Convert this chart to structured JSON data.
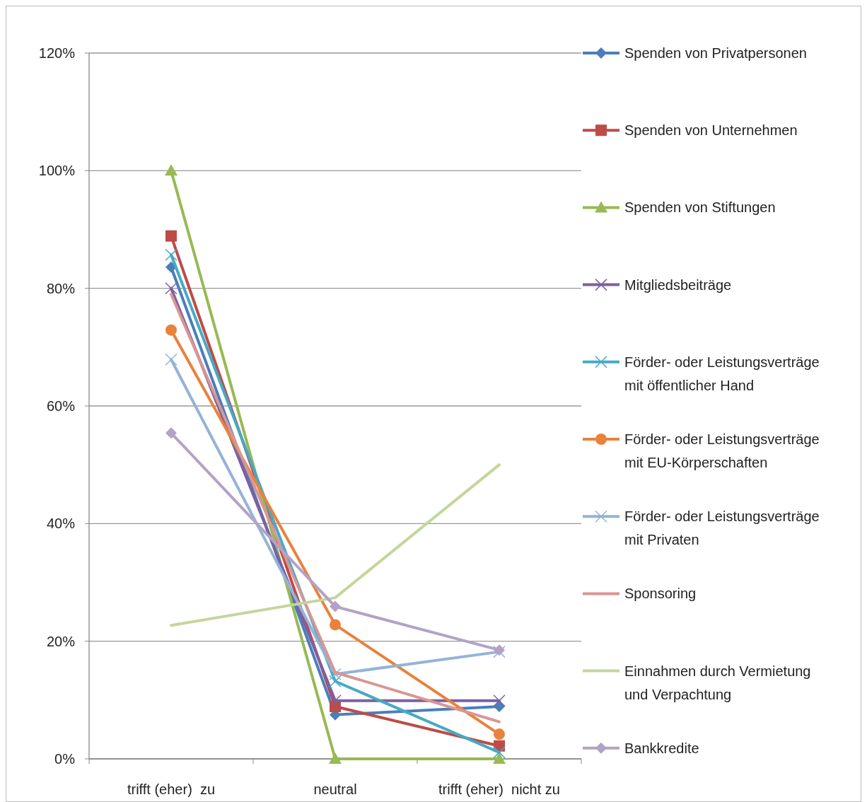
{
  "chart_data": {
    "type": "line",
    "categories": [
      "trifft (eher)  zu",
      "neutral",
      "trifft (eher)  nicht zu"
    ],
    "ylim": [
      0,
      120
    ],
    "yticks": [
      {
        "value": 0,
        "label": "0%"
      },
      {
        "value": 20,
        "label": "20%"
      },
      {
        "value": 40,
        "label": "40%"
      },
      {
        "value": 60,
        "label": "60%"
      },
      {
        "value": 80,
        "label": "80%"
      },
      {
        "value": 100,
        "label": "100%"
      },
      {
        "value": 120,
        "label": "120%"
      }
    ],
    "grid": "y",
    "legend": "right",
    "series": [
      {
        "name": "Spenden von Privatpersonen",
        "color": "#4a7ebb",
        "marker": "diamond",
        "values": [
          83.6,
          7.5,
          8.9
        ]
      },
      {
        "name": "Spenden von Unternehmen",
        "color": "#be4b48",
        "marker": "square",
        "values": [
          88.9,
          8.9,
          2.2
        ]
      },
      {
        "name": "Spenden von Stiftungen",
        "color": "#98b954",
        "marker": "triangle",
        "values": [
          100,
          0,
          0
        ]
      },
      {
        "name": "Mitgliedsbeiträge",
        "color": "#7d60a0",
        "marker": "cross",
        "values": [
          80,
          9.9,
          9.9
        ]
      },
      {
        "name": "Förder- oder Leistungsverträge mit öffentlicher Hand",
        "color": "#46aac5",
        "marker": "cross",
        "values": [
          85.7,
          13.2,
          1.1
        ]
      },
      {
        "name": "Förder- oder Leistungsverträge mit EU-Körperschaften",
        "color": "#e9823c",
        "marker": "circle",
        "values": [
          72.9,
          22.8,
          4.2
        ]
      },
      {
        "name": "Förder- oder Leistungsverträge mit Privaten",
        "color": "#95b3d7",
        "marker": "cross",
        "values": [
          67.9,
          14.4,
          18.2
        ]
      },
      {
        "name": "Sponsoring",
        "color": "#d99694",
        "marker": "none",
        "values": [
          79,
          14.7,
          6.3
        ]
      },
      {
        "name": "Einnahmen durch Vermietung und Verpachtung",
        "color": "#c3d69b",
        "marker": "none",
        "values": [
          22.7,
          27.4,
          50
        ]
      },
      {
        "name": "Bankkredite",
        "color": "#b3a2c7",
        "marker": "diamond",
        "values": [
          55.4,
          25.9,
          18.5
        ]
      }
    ]
  }
}
